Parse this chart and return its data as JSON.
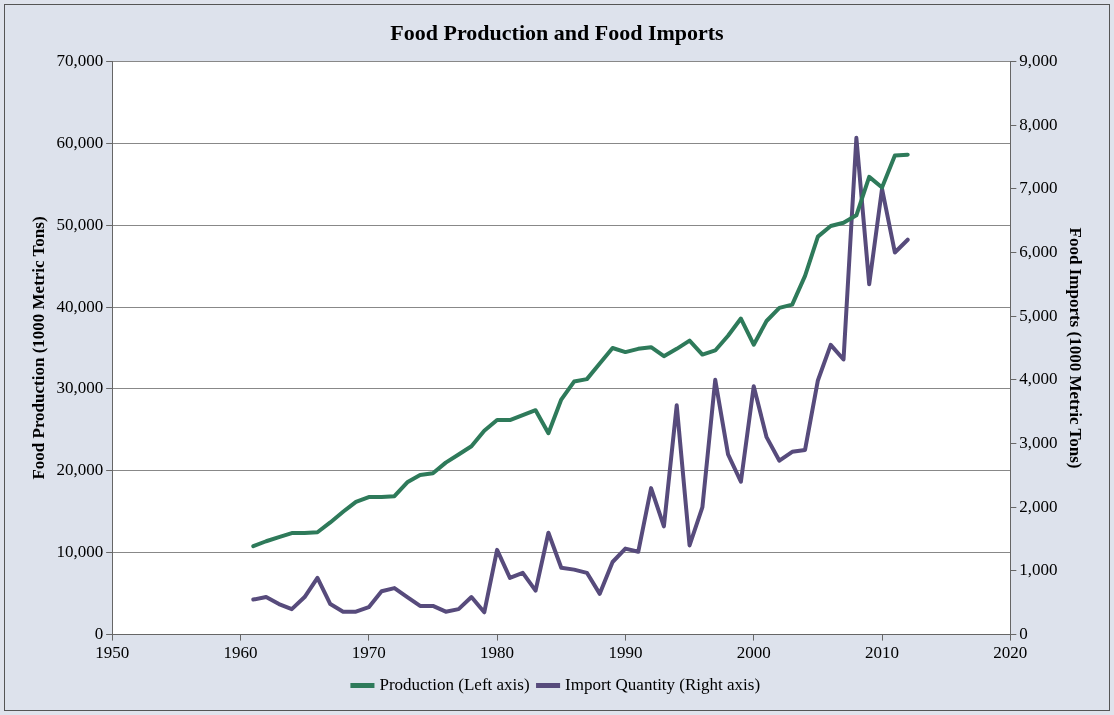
{
  "chart_data": {
    "type": "line",
    "title": "Food Production and Food Imports",
    "ylabel": "Food Production (1000 Metric Tons)",
    "y2label": "Food Imports (1000 Metric Tons)",
    "x": [
      1961,
      1962,
      1963,
      1964,
      1965,
      1966,
      1967,
      1968,
      1969,
      1970,
      1971,
      1972,
      1973,
      1974,
      1975,
      1976,
      1977,
      1978,
      1979,
      1980,
      1981,
      1982,
      1983,
      1984,
      1985,
      1986,
      1987,
      1988,
      1989,
      1990,
      1991,
      1992,
      1993,
      1994,
      1995,
      1996,
      1997,
      1998,
      1999,
      2000,
      2001,
      2002,
      2003,
      2004,
      2005,
      2006,
      2007,
      2008,
      2009,
      2010,
      2011,
      2012
    ],
    "series": [
      {
        "name": "Production (Left axis)",
        "color": "#2e7a5a",
        "axis": "y",
        "values": [
          10800,
          11400,
          11900,
          12400,
          12400,
          12500,
          13700,
          15000,
          16200,
          16800,
          16800,
          16900,
          18600,
          19500,
          19700,
          21000,
          22000,
          23000,
          24900,
          26200,
          26200,
          26800,
          27400,
          24600,
          28700,
          30900,
          31200,
          33100,
          35000,
          34500,
          34900,
          35100,
          34000,
          34900,
          35900,
          34200,
          34700,
          36500,
          38600,
          35400,
          38300,
          39900,
          40300,
          43800,
          48600,
          49900,
          50300,
          51200,
          55900,
          54600,
          58500,
          58600
        ]
      },
      {
        "name": "Import Quantity (Right axis)",
        "color": "#574b7c",
        "axis": "y2",
        "values": [
          550,
          590,
          480,
          400,
          590,
          890,
          480,
          360,
          360,
          430,
          680,
          730,
          590,
          450,
          450,
          360,
          400,
          590,
          350,
          1330,
          890,
          970,
          690,
          1600,
          1050,
          1020,
          970,
          640,
          1140,
          1350,
          1300,
          2300,
          1700,
          3600,
          1400,
          2000,
          4000,
          2830,
          2400,
          3900,
          3100,
          2730,
          2870,
          2900,
          3990,
          4550,
          4320,
          7800,
          5500,
          7000,
          6000,
          6200
        ]
      }
    ],
    "xlim": [
      1950,
      2020
    ],
    "xticks": [
      1950,
      1960,
      1970,
      1980,
      1990,
      2000,
      2010,
      2020
    ],
    "ylim": [
      0,
      70000
    ],
    "yticks": [
      0,
      {
        "value": 10000,
        "label": "10,000"
      },
      {
        "value": 20000,
        "label": "20,000"
      },
      {
        "value": 30000,
        "label": "30,000"
      },
      {
        "value": 40000,
        "label": "40,000"
      },
      {
        "value": 50000,
        "label": "50,000"
      },
      {
        "value": 60000,
        "label": "60,000"
      },
      {
        "value": 70000,
        "label": "70,000"
      }
    ],
    "y2lim": [
      0,
      9000
    ],
    "y2ticks": [
      0,
      {
        "value": 1000,
        "label": "1,000"
      },
      {
        "value": 2000,
        "label": "2,000"
      },
      {
        "value": 3000,
        "label": "3,000"
      },
      {
        "value": 4000,
        "label": "4,000"
      },
      {
        "value": 5000,
        "label": "5,000"
      },
      {
        "value": 6000,
        "label": "6,000"
      },
      {
        "value": 7000,
        "label": "7,000"
      },
      {
        "value": 8000,
        "label": "8,000"
      },
      {
        "value": 9000,
        "label": "9,000"
      }
    ],
    "grid": "y",
    "legend": "bottom",
    "marker": "none",
    "line_style": "solid"
  }
}
